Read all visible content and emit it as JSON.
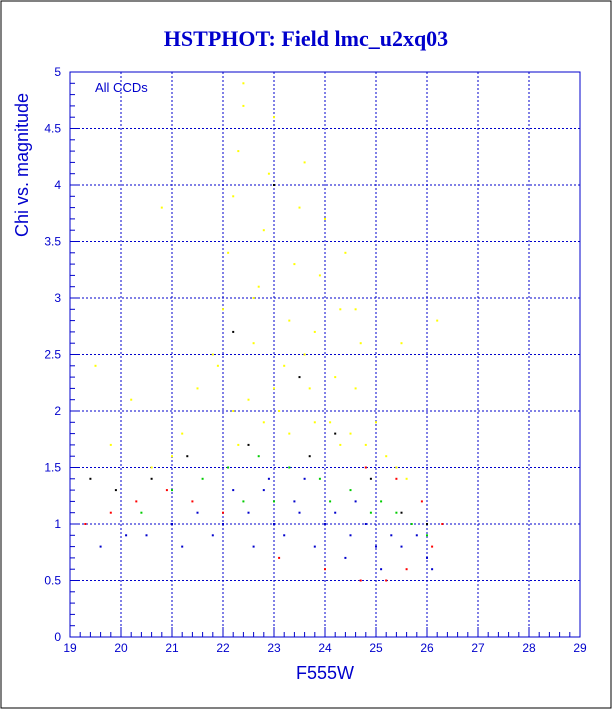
{
  "chart_data": {
    "type": "scatter",
    "title": "HSTPHOT: Field lmc_u2xq03",
    "xlabel": "F555W",
    "ylabel": "Chi vs. magnitude",
    "annotation": "All CCDs",
    "xlim": [
      19,
      29
    ],
    "ylim": [
      0,
      5
    ],
    "x_ticks": [
      "19",
      "20",
      "21",
      "22",
      "23",
      "24",
      "25",
      "26",
      "27",
      "28",
      "29"
    ],
    "y_ticks": [
      "0",
      "0.5",
      "1",
      "1.5",
      "2",
      "2.5",
      "3",
      "3.5",
      "4",
      "4.5",
      "5"
    ],
    "grid": true,
    "legend": "none",
    "colors": {
      "axes": "#0000cc",
      "title": "#0000cc",
      "frame": "#000000"
    },
    "series": [
      {
        "color": "#ffff00",
        "points": [
          [
            21.2,
            1.8
          ],
          [
            21.5,
            2.2
          ],
          [
            21.8,
            2.5
          ],
          [
            22.0,
            2.9
          ],
          [
            22.1,
            3.4
          ],
          [
            22.2,
            3.9
          ],
          [
            22.3,
            4.3
          ],
          [
            22.4,
            4.7
          ],
          [
            22.5,
            2.1
          ],
          [
            22.6,
            2.6
          ],
          [
            22.7,
            3.1
          ],
          [
            22.8,
            3.6
          ],
          [
            22.9,
            4.1
          ],
          [
            23.0,
            4.6
          ],
          [
            23.1,
            2.0
          ],
          [
            23.2,
            2.4
          ],
          [
            23.3,
            2.8
          ],
          [
            23.4,
            3.3
          ],
          [
            23.5,
            3.8
          ],
          [
            23.6,
            4.2
          ],
          [
            23.7,
            2.2
          ],
          [
            23.8,
            2.7
          ],
          [
            23.9,
            3.2
          ],
          [
            24.0,
            3.7
          ],
          [
            24.1,
            1.9
          ],
          [
            24.2,
            2.3
          ],
          [
            24.3,
            2.9
          ],
          [
            24.4,
            3.4
          ],
          [
            24.5,
            1.8
          ],
          [
            24.6,
            2.2
          ],
          [
            24.7,
            2.6
          ],
          [
            24.8,
            1.7
          ],
          [
            25.0,
            1.9
          ],
          [
            25.2,
            1.6
          ],
          [
            25.4,
            1.5
          ],
          [
            25.6,
            1.4
          ],
          [
            21.0,
            1.6
          ],
          [
            20.6,
            1.5
          ],
          [
            20.2,
            2.1
          ],
          [
            19.8,
            1.7
          ],
          [
            22.3,
            1.7
          ],
          [
            22.8,
            1.9
          ],
          [
            23.3,
            1.8
          ],
          [
            23.8,
            1.9
          ],
          [
            24.3,
            1.7
          ],
          [
            22.2,
            2.0
          ],
          [
            23.0,
            2.2
          ],
          [
            21.9,
            2.4
          ],
          [
            23.6,
            2.5
          ],
          [
            22.6,
            3.0
          ],
          [
            24.6,
            2.9
          ],
          [
            25.5,
            2.6
          ],
          [
            19.5,
            2.4
          ],
          [
            20.8,
            3.8
          ],
          [
            26.2,
            2.8
          ],
          [
            22.4,
            4.9
          ]
        ]
      },
      {
        "color": "#0000cc",
        "points": [
          [
            20.5,
            0.9
          ],
          [
            21.0,
            1.0
          ],
          [
            21.5,
            1.1
          ],
          [
            22.0,
            1.0
          ],
          [
            22.5,
            1.1
          ],
          [
            23.0,
            1.0
          ],
          [
            23.5,
            1.1
          ],
          [
            24.0,
            1.0
          ],
          [
            24.5,
            0.9
          ],
          [
            25.0,
            0.8
          ],
          [
            25.5,
            0.8
          ],
          [
            26.0,
            0.7
          ],
          [
            22.2,
            1.3
          ],
          [
            22.8,
            1.3
          ],
          [
            23.4,
            1.2
          ],
          [
            24.2,
            1.1
          ],
          [
            24.8,
            1.0
          ],
          [
            25.3,
            0.9
          ],
          [
            21.8,
            0.9
          ],
          [
            22.6,
            0.8
          ],
          [
            23.2,
            0.9
          ],
          [
            23.8,
            0.8
          ],
          [
            24.4,
            0.7
          ],
          [
            25.1,
            0.6
          ],
          [
            19.6,
            0.8
          ],
          [
            20.1,
            0.9
          ],
          [
            21.2,
            0.8
          ],
          [
            22.9,
            1.4
          ],
          [
            23.6,
            1.4
          ],
          [
            24.6,
            1.2
          ],
          [
            25.8,
            0.9
          ],
          [
            26.1,
            0.6
          ]
        ]
      },
      {
        "color": "#00cc00",
        "points": [
          [
            21.0,
            1.3
          ],
          [
            21.6,
            1.4
          ],
          [
            22.1,
            1.5
          ],
          [
            22.7,
            1.6
          ],
          [
            23.3,
            1.5
          ],
          [
            23.9,
            1.4
          ],
          [
            24.5,
            1.3
          ],
          [
            25.1,
            1.2
          ],
          [
            25.7,
            1.0
          ],
          [
            20.4,
            1.1
          ],
          [
            22.4,
            1.2
          ],
          [
            23.0,
            1.2
          ],
          [
            24.1,
            1.2
          ],
          [
            24.9,
            1.1
          ],
          [
            25.4,
            1.1
          ],
          [
            26.0,
            0.9
          ]
        ]
      },
      {
        "color": "#ff0000",
        "points": [
          [
            19.3,
            1.0
          ],
          [
            19.8,
            1.1
          ],
          [
            20.3,
            1.2
          ],
          [
            20.9,
            1.3
          ],
          [
            21.4,
            1.2
          ],
          [
            22.0,
            1.1
          ],
          [
            23.1,
            0.7
          ],
          [
            24.0,
            0.6
          ],
          [
            24.7,
            0.5
          ],
          [
            25.2,
            0.5
          ],
          [
            25.6,
            0.6
          ],
          [
            26.1,
            0.8
          ],
          [
            26.3,
            1.0
          ],
          [
            25.9,
            1.2
          ],
          [
            25.4,
            1.4
          ],
          [
            24.8,
            1.5
          ]
        ]
      },
      {
        "color": "#000000",
        "points": [
          [
            19.4,
            1.4
          ],
          [
            19.9,
            1.3
          ],
          [
            20.6,
            1.4
          ],
          [
            21.3,
            1.6
          ],
          [
            22.5,
            1.7
          ],
          [
            23.7,
            1.6
          ],
          [
            24.2,
            1.8
          ],
          [
            24.9,
            1.4
          ],
          [
            25.5,
            1.1
          ],
          [
            26.0,
            1.0
          ],
          [
            23.0,
            4.0
          ],
          [
            22.2,
            2.7
          ],
          [
            23.5,
            2.3
          ]
        ]
      }
    ]
  }
}
